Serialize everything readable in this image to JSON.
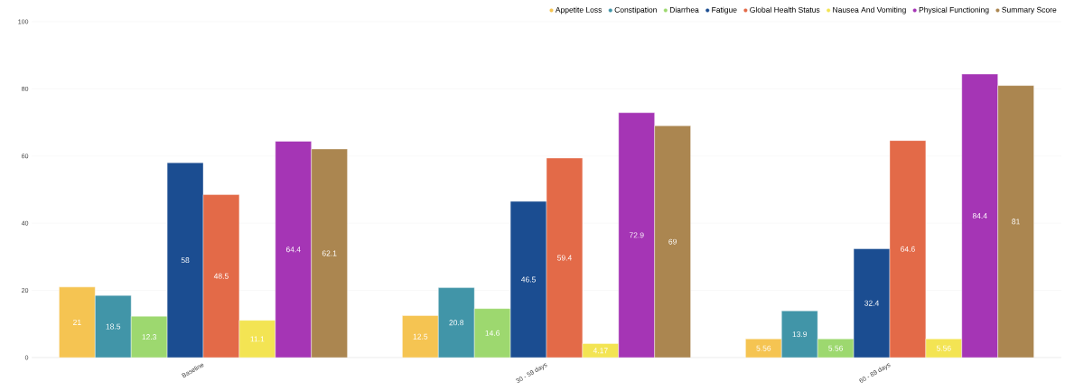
{
  "chart_data": {
    "type": "bar",
    "categories": [
      "Baseline",
      "30 - 59 days",
      "60 - 89 days"
    ],
    "series": [
      {
        "name": "Appetite Loss",
        "color": "#f5c452",
        "values": [
          21,
          12.5,
          5.56
        ]
      },
      {
        "name": "Constipation",
        "color": "#4195a8",
        "values": [
          18.5,
          20.8,
          13.9
        ]
      },
      {
        "name": "Diarrhea",
        "color": "#9dd86f",
        "values": [
          12.3,
          14.6,
          5.56
        ]
      },
      {
        "name": "Fatigue",
        "color": "#1b4d91",
        "values": [
          58,
          46.5,
          32.4
        ]
      },
      {
        "name": "Global Health Status",
        "color": "#e36a48",
        "values": [
          48.5,
          59.4,
          64.6
        ]
      },
      {
        "name": "Nausea And Vomiting",
        "color": "#f3e453",
        "values": [
          11.1,
          4.17,
          5.56
        ]
      },
      {
        "name": "Physical Functioning",
        "color": "#a535b5",
        "values": [
          64.4,
          72.9,
          84.4
        ]
      },
      {
        "name": "Summary Score",
        "color": "#ab8650",
        "values": [
          62.1,
          69,
          81
        ]
      }
    ],
    "ylim": [
      0,
      100
    ],
    "yticks": [
      0,
      20,
      40,
      60,
      80,
      100
    ],
    "grid": "y",
    "legend": "top right",
    "data_labels": true
  }
}
